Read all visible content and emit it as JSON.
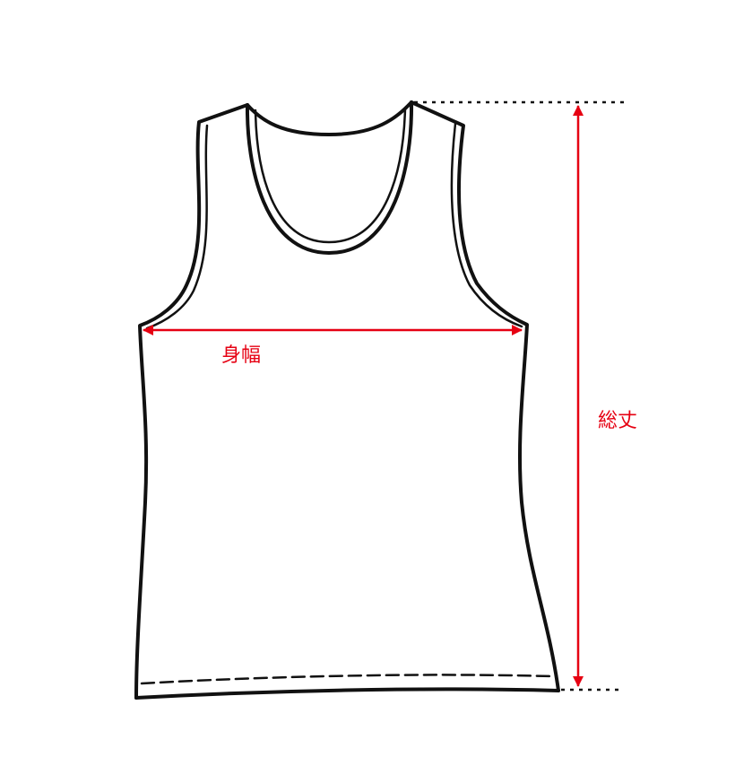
{
  "diagram": {
    "subject": "tank-top",
    "colors": {
      "outline": "#111111",
      "measure": "#e60012",
      "guide": "#111111",
      "background": "#ffffff"
    },
    "labels": {
      "body_width": "身幅",
      "total_length": "総丈"
    }
  }
}
